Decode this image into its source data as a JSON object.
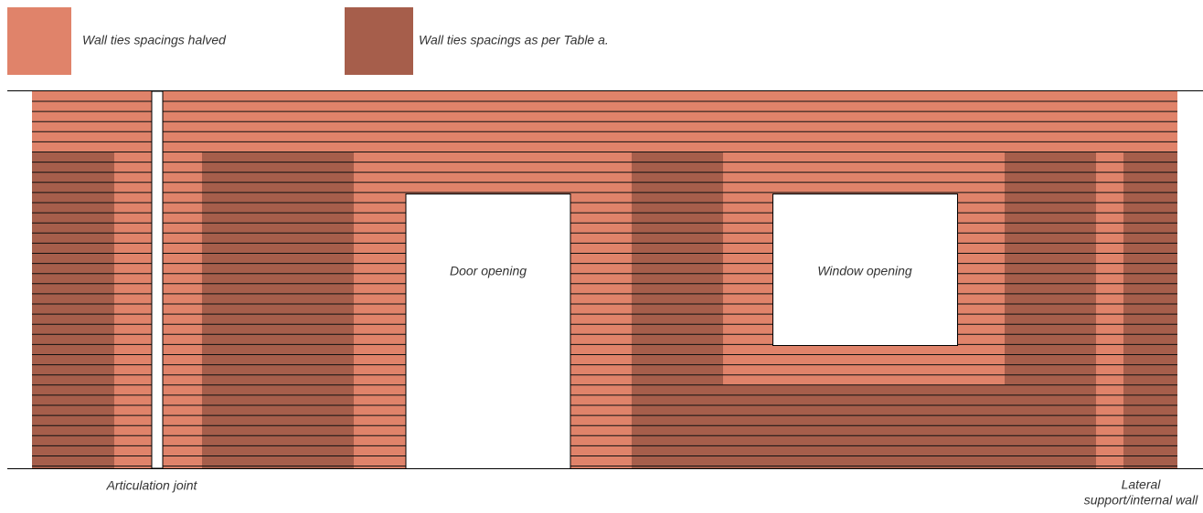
{
  "legend": [
    {
      "label": "Wall ties spacings halved",
      "color": "#e0836a"
    },
    {
      "label": "Wall ties spacings as per Table a.",
      "color": "#a65e4b"
    }
  ],
  "labels": {
    "door": "Door opening",
    "window": "Window opening",
    "joint": "Articulation joint",
    "lateral": [
      "Lateral",
      "support/internal wall"
    ]
  }
}
